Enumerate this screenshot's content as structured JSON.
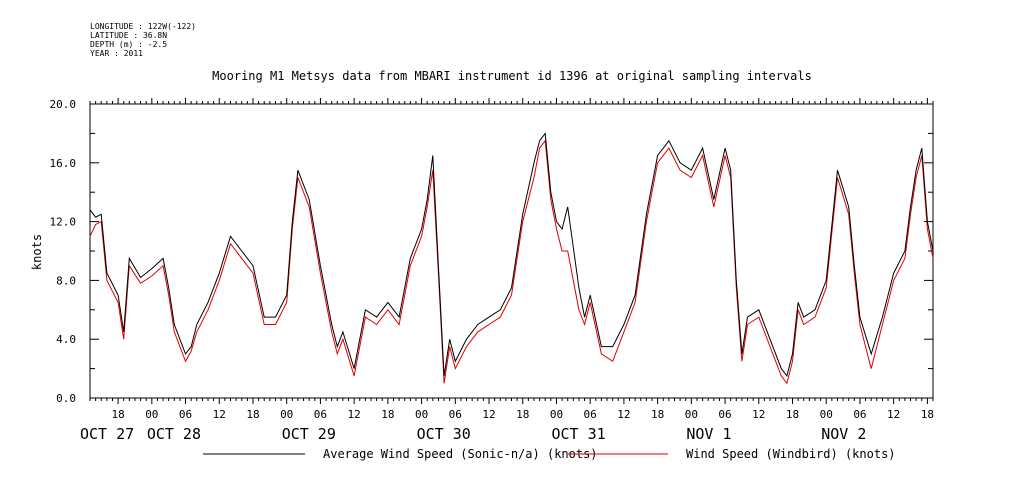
{
  "header": {
    "lines": [
      "LONGITUDE : 122W(-122)",
      "LATITUDE : 36.8N",
      "DEPTH (m) : -2.5",
      "YEAR : 2011"
    ]
  },
  "chart_data": {
    "type": "line",
    "title": "Mooring M1 Metsys data from MBARI instrument id 1396 at original sampling intervals",
    "ylabel": "knots",
    "xlabel": "",
    "ylim": [
      0,
      20
    ],
    "xlim": [
      "2011-10-27T13:00",
      "2011-11-02T19:00"
    ],
    "yticks": [
      "0.0",
      "4.0",
      "8.0",
      "12.0",
      "16.0",
      "20.0"
    ],
    "xtick_hours": [
      "18",
      "00",
      "06",
      "12",
      "18",
      "00",
      "06",
      "12",
      "18",
      "00",
      "06",
      "12",
      "18",
      "00",
      "06",
      "12",
      "18",
      "00",
      "06",
      "12",
      "18",
      "00",
      "06",
      "12",
      "18"
    ],
    "date_labels": [
      "OCT 27",
      "OCT 28",
      "OCT 29",
      "OCT 30",
      "OCT 31",
      "NOV  1",
      "NOV  2"
    ],
    "grid": false,
    "legend_position": "bottom",
    "colors": {
      "black_series": "#000000",
      "red_series": "#e00000"
    },
    "series": [
      {
        "name": "Average Wind Speed (Sonic-n/a) (knots)",
        "color": "#000000",
        "x": [
          "2011-10-27T13:00",
          "2011-10-27T14:00",
          "2011-10-27T15:00",
          "2011-10-27T16:00",
          "2011-10-27T18:00",
          "2011-10-27T19:00",
          "2011-10-27T20:00",
          "2011-10-27T22:00",
          "2011-10-28T00:00",
          "2011-10-28T02:00",
          "2011-10-28T03:00",
          "2011-10-28T04:00",
          "2011-10-28T06:00",
          "2011-10-28T07:00",
          "2011-10-28T08:00",
          "2011-10-28T10:00",
          "2011-10-28T12:00",
          "2011-10-28T14:00",
          "2011-10-28T16:00",
          "2011-10-28T18:00",
          "2011-10-28T20:00",
          "2011-10-28T22:00",
          "2011-10-29T00:00",
          "2011-10-29T01:00",
          "2011-10-29T02:00",
          "2011-10-29T04:00",
          "2011-10-29T06:00",
          "2011-10-29T08:00",
          "2011-10-29T09:00",
          "2011-10-29T10:00",
          "2011-10-29T12:00",
          "2011-10-29T14:00",
          "2011-10-29T16:00",
          "2011-10-29T18:00",
          "2011-10-29T20:00",
          "2011-10-29T22:00",
          "2011-10-30T00:00",
          "2011-10-30T01:00",
          "2011-10-30T02:00",
          "2011-10-30T03:00",
          "2011-10-30T04:00",
          "2011-10-30T05:00",
          "2011-10-30T06:00",
          "2011-10-30T08:00",
          "2011-10-30T10:00",
          "2011-10-30T12:00",
          "2011-10-30T14:00",
          "2011-10-30T16:00",
          "2011-10-30T18:00",
          "2011-10-30T20:00",
          "2011-10-30T21:00",
          "2011-10-30T22:00",
          "2011-10-30T23:00",
          "2011-10-31T00:00",
          "2011-10-31T01:00",
          "2011-10-31T02:00",
          "2011-10-31T04:00",
          "2011-10-31T05:00",
          "2011-10-31T06:00",
          "2011-10-31T08:00",
          "2011-10-31T10:00",
          "2011-10-31T12:00",
          "2011-10-31T14:00",
          "2011-10-31T16:00",
          "2011-10-31T18:00",
          "2011-10-31T20:00",
          "2011-10-31T22:00",
          "2011-11-01T00:00",
          "2011-11-01T02:00",
          "2011-11-01T04:00",
          "2011-11-01T06:00",
          "2011-11-01T07:00",
          "2011-11-01T08:00",
          "2011-11-01T09:00",
          "2011-11-01T10:00",
          "2011-11-01T12:00",
          "2011-11-01T14:00",
          "2011-11-01T16:00",
          "2011-11-01T17:00",
          "2011-11-01T18:00",
          "2011-11-01T19:00",
          "2011-11-01T20:00",
          "2011-11-01T22:00",
          "2011-11-02T00:00",
          "2011-11-02T02:00",
          "2011-11-02T04:00",
          "2011-11-02T05:00",
          "2011-11-02T06:00",
          "2011-11-02T08:00",
          "2011-11-02T10:00",
          "2011-11-02T12:00",
          "2011-11-02T14:00",
          "2011-11-02T15:00",
          "2011-11-02T16:00",
          "2011-11-02T17:00",
          "2011-11-02T18:00",
          "2011-11-02T19:00"
        ],
        "values": [
          12.8,
          12.3,
          12.5,
          8.5,
          7.0,
          4.5,
          9.5,
          8.2,
          8.8,
          9.5,
          7.5,
          5.0,
          3.0,
          3.5,
          5.0,
          6.5,
          8.5,
          11.0,
          10.0,
          9.0,
          5.5,
          5.5,
          7.0,
          12.0,
          15.5,
          13.5,
          9.0,
          5.0,
          3.5,
          4.5,
          2.0,
          6.0,
          5.5,
          6.5,
          5.5,
          9.5,
          11.5,
          13.5,
          16.5,
          9.0,
          1.5,
          4.0,
          2.5,
          4.0,
          5.0,
          5.5,
          6.0,
          7.5,
          12.5,
          16.0,
          17.5,
          18.0,
          14.0,
          12.0,
          11.5,
          13.0,
          7.5,
          5.5,
          7.0,
          3.5,
          3.5,
          5.0,
          7.0,
          12.5,
          16.5,
          17.5,
          16.0,
          15.5,
          17.0,
          13.5,
          17.0,
          15.5,
          8.0,
          3.0,
          5.5,
          6.0,
          4.0,
          2.0,
          1.5,
          3.0,
          6.5,
          5.5,
          6.0,
          8.0,
          15.5,
          13.0,
          9.0,
          5.5,
          3.0,
          5.5,
          8.5,
          10.0,
          13.0,
          15.5,
          17.0,
          12.0,
          10.0
        ]
      },
      {
        "name": "Wind Speed (Windbird) (knots)",
        "color": "#e00000",
        "x": [
          "2011-10-27T13:00",
          "2011-10-27T14:00",
          "2011-10-27T15:00",
          "2011-10-27T16:00",
          "2011-10-27T18:00",
          "2011-10-27T19:00",
          "2011-10-27T20:00",
          "2011-10-27T22:00",
          "2011-10-28T00:00",
          "2011-10-28T02:00",
          "2011-10-28T03:00",
          "2011-10-28T04:00",
          "2011-10-28T06:00",
          "2011-10-28T07:00",
          "2011-10-28T08:00",
          "2011-10-28T10:00",
          "2011-10-28T12:00",
          "2011-10-28T14:00",
          "2011-10-28T16:00",
          "2011-10-28T18:00",
          "2011-10-28T20:00",
          "2011-10-28T22:00",
          "2011-10-29T00:00",
          "2011-10-29T01:00",
          "2011-10-29T02:00",
          "2011-10-29T04:00",
          "2011-10-29T06:00",
          "2011-10-29T08:00",
          "2011-10-29T09:00",
          "2011-10-29T10:00",
          "2011-10-29T12:00",
          "2011-10-29T14:00",
          "2011-10-29T16:00",
          "2011-10-29T18:00",
          "2011-10-29T20:00",
          "2011-10-29T22:00",
          "2011-10-30T00:00",
          "2011-10-30T01:00",
          "2011-10-30T02:00",
          "2011-10-30T03:00",
          "2011-10-30T04:00",
          "2011-10-30T05:00",
          "2011-10-30T06:00",
          "2011-10-30T08:00",
          "2011-10-30T10:00",
          "2011-10-30T12:00",
          "2011-10-30T14:00",
          "2011-10-30T16:00",
          "2011-10-30T18:00",
          "2011-10-30T20:00",
          "2011-10-30T21:00",
          "2011-10-30T22:00",
          "2011-10-30T23:00",
          "2011-10-31T00:00",
          "2011-10-31T01:00",
          "2011-10-31T02:00",
          "2011-10-31T04:00",
          "2011-10-31T05:00",
          "2011-10-31T06:00",
          "2011-10-31T08:00",
          "2011-10-31T10:00",
          "2011-10-31T12:00",
          "2011-10-31T14:00",
          "2011-10-31T16:00",
          "2011-10-31T18:00",
          "2011-10-31T20:00",
          "2011-10-31T22:00",
          "2011-11-01T00:00",
          "2011-11-01T02:00",
          "2011-11-01T04:00",
          "2011-11-01T06:00",
          "2011-11-01T07:00",
          "2011-11-01T08:00",
          "2011-11-01T09:00",
          "2011-11-01T10:00",
          "2011-11-01T12:00",
          "2011-11-01T14:00",
          "2011-11-01T16:00",
          "2011-11-01T17:00",
          "2011-11-01T18:00",
          "2011-11-01T19:00",
          "2011-11-01T20:00",
          "2011-11-01T22:00",
          "2011-11-02T00:00",
          "2011-11-02T02:00",
          "2011-11-02T04:00",
          "2011-11-02T05:00",
          "2011-11-02T06:00",
          "2011-11-02T08:00",
          "2011-11-02T10:00",
          "2011-11-02T12:00",
          "2011-11-02T14:00",
          "2011-11-02T15:00",
          "2011-11-02T16:00",
          "2011-11-02T17:00",
          "2011-11-02T18:00",
          "2011-11-02T19:00"
        ],
        "values": [
          11.0,
          11.8,
          12.0,
          8.0,
          6.5,
          4.0,
          9.0,
          7.8,
          8.3,
          9.0,
          7.0,
          4.5,
          2.5,
          3.2,
          4.5,
          6.0,
          8.0,
          10.5,
          9.5,
          8.5,
          5.0,
          5.0,
          6.5,
          11.5,
          15.0,
          13.0,
          8.5,
          4.5,
          3.0,
          4.0,
          1.5,
          5.5,
          5.0,
          6.0,
          5.0,
          9.0,
          11.0,
          13.0,
          15.5,
          8.5,
          1.0,
          3.5,
          2.0,
          3.5,
          4.5,
          5.0,
          5.5,
          7.0,
          12.0,
          15.0,
          17.0,
          17.5,
          13.5,
          11.5,
          10.0,
          10.0,
          6.0,
          5.0,
          6.5,
          3.0,
          2.5,
          4.5,
          6.5,
          12.0,
          16.0,
          17.0,
          15.5,
          15.0,
          16.5,
          13.0,
          16.5,
          15.0,
          7.5,
          2.5,
          5.0,
          5.5,
          3.5,
          1.5,
          1.0,
          2.5,
          6.0,
          5.0,
          5.5,
          7.5,
          15.0,
          12.5,
          8.5,
          5.0,
          2.0,
          5.0,
          8.0,
          9.5,
          12.5,
          15.0,
          16.5,
          11.5,
          9.5
        ]
      }
    ]
  }
}
